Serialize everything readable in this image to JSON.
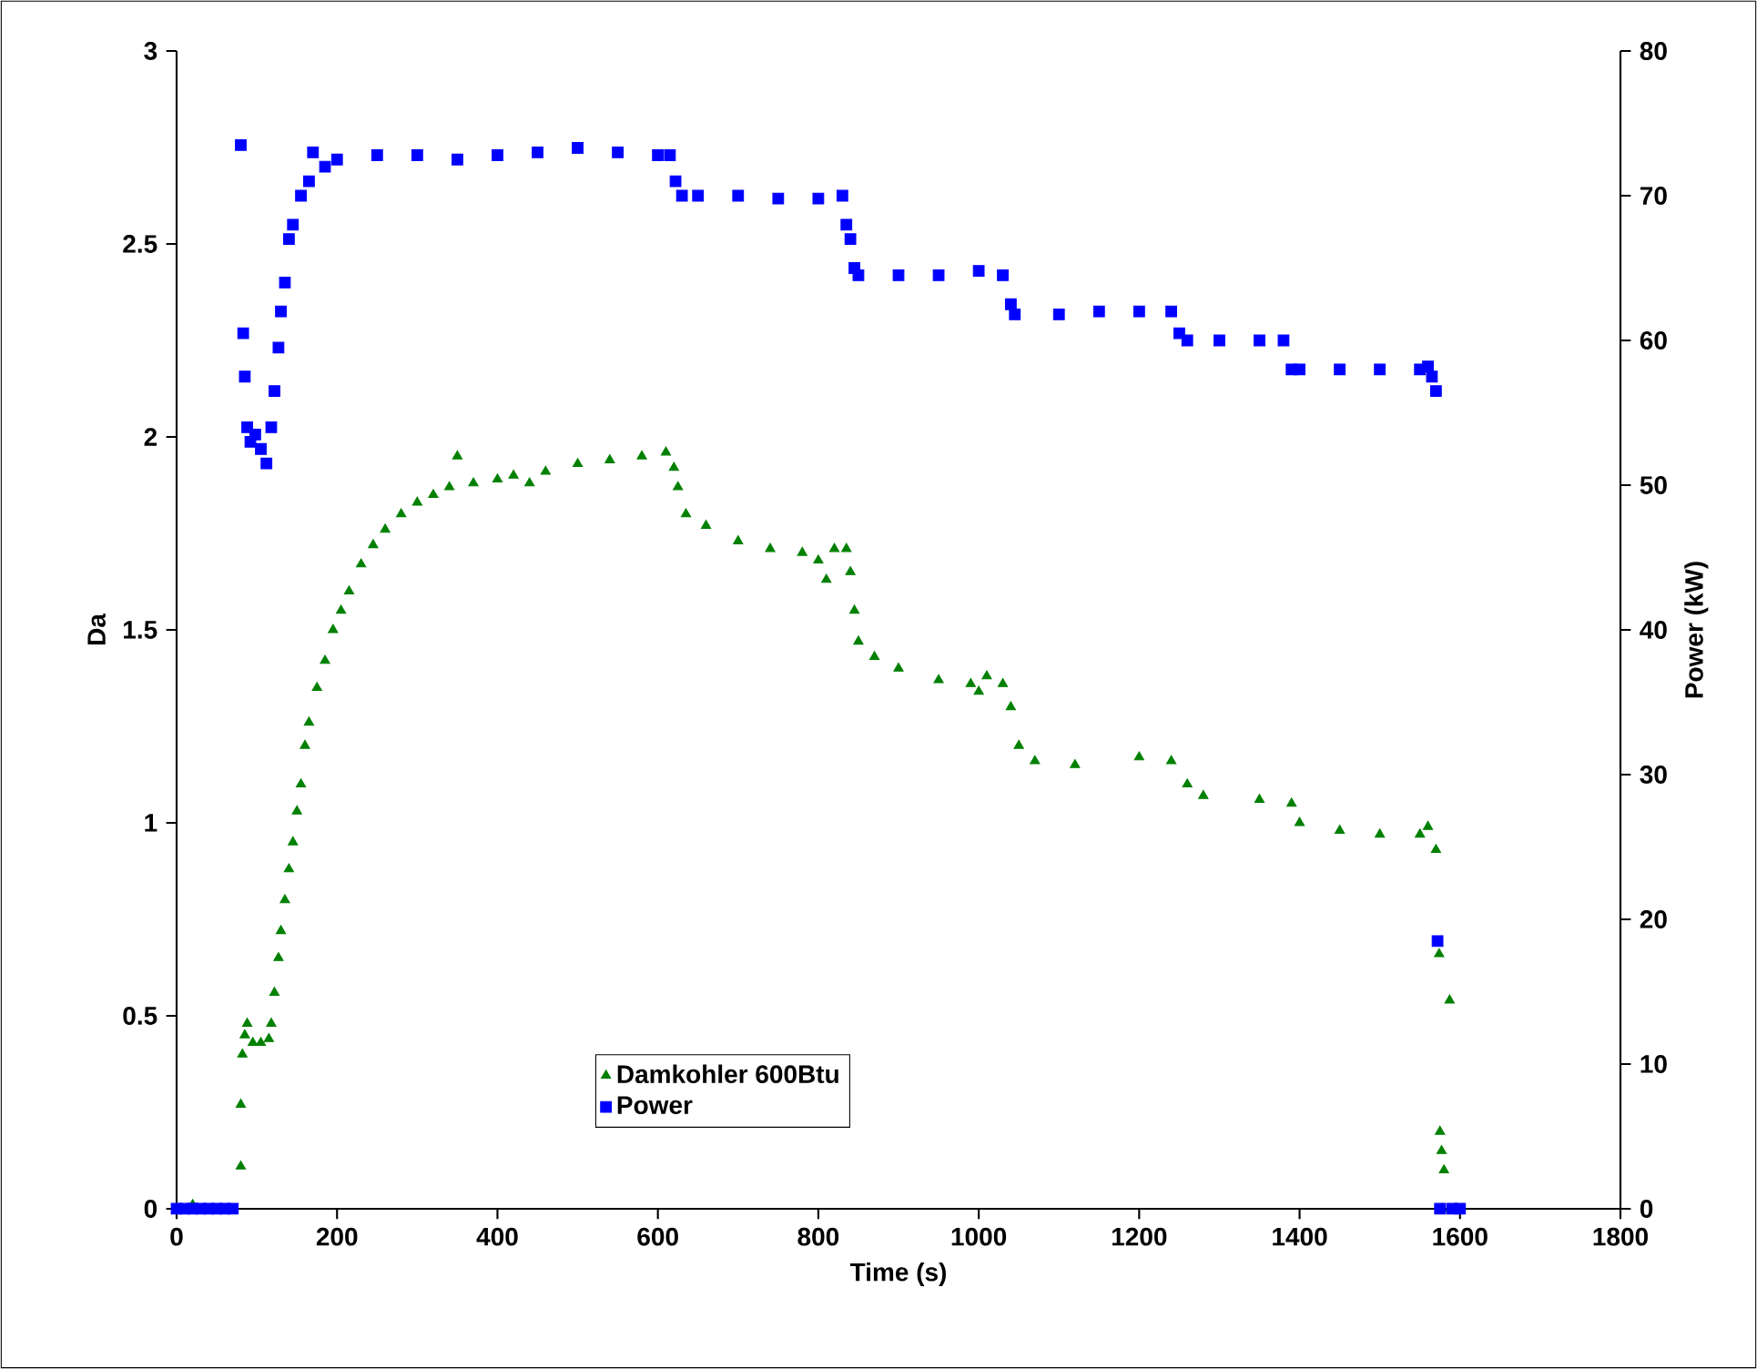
{
  "chart_data": {
    "type": "scatter",
    "xlabel": "Time (s)",
    "ylabel": "Da",
    "y2label": "Power (kW)",
    "xlim": [
      0,
      1800
    ],
    "xticks": [
      0,
      200,
      400,
      600,
      800,
      1000,
      1200,
      1400,
      1600,
      1800
    ],
    "ylim": [
      0,
      3
    ],
    "yticks": [
      0,
      0.5,
      1,
      1.5,
      2,
      2.5,
      3
    ],
    "y2lim": [
      0,
      80
    ],
    "y2ticks": [
      0,
      10,
      20,
      30,
      40,
      50,
      60,
      70,
      80
    ],
    "legend": "bottom",
    "grid": false,
    "series": [
      {
        "name": "Damkohler 600Btu",
        "color": "#008000",
        "marker": "triangle",
        "x": [
          20,
          80,
          80,
          82,
          85,
          88,
          95,
          105,
          115,
          118,
          122,
          127,
          130,
          135,
          140,
          145,
          150,
          155,
          160,
          165,
          175,
          185,
          195,
          205,
          215,
          230,
          245,
          260,
          280,
          300,
          320,
          340,
          350,
          370,
          400,
          420,
          440,
          460,
          500,
          540,
          580,
          610,
          620,
          625,
          635,
          660,
          700,
          740,
          780,
          800,
          810,
          820,
          835,
          840,
          845,
          850,
          870,
          900,
          950,
          990,
          1000,
          1010,
          1030,
          1040,
          1050,
          1070,
          1120,
          1200,
          1240,
          1260,
          1280,
          1350,
          1390,
          1400,
          1450,
          1500,
          1550,
          1560,
          1570,
          1574,
          1575,
          1577,
          1578,
          1580,
          1587
        ],
        "values": [
          0.01,
          0.11,
          0.27,
          0.4,
          0.45,
          0.48,
          0.43,
          0.43,
          0.44,
          0.48,
          0.56,
          0.65,
          0.72,
          0.8,
          0.88,
          0.95,
          1.03,
          1.1,
          1.2,
          1.26,
          1.35,
          1.42,
          1.5,
          1.55,
          1.6,
          1.67,
          1.72,
          1.76,
          1.8,
          1.83,
          1.85,
          1.87,
          1.95,
          1.88,
          1.89,
          1.9,
          1.88,
          1.91,
          1.93,
          1.94,
          1.95,
          1.96,
          1.92,
          1.87,
          1.8,
          1.77,
          1.73,
          1.71,
          1.7,
          1.68,
          1.63,
          1.71,
          1.71,
          1.65,
          1.55,
          1.47,
          1.43,
          1.4,
          1.37,
          1.36,
          1.34,
          1.38,
          1.36,
          1.3,
          1.2,
          1.16,
          1.15,
          1.17,
          1.16,
          1.1,
          1.07,
          1.06,
          1.05,
          1.0,
          0.98,
          0.97,
          0.97,
          0.99,
          0.93,
          0.66,
          0.2,
          0.15,
          0,
          0.1,
          0.54
        ]
      },
      {
        "name": "Power",
        "color": "#0000ff",
        "marker": "square",
        "axis": "y2",
        "x": [
          0,
          10,
          20,
          30,
          40,
          50,
          60,
          70,
          80,
          83,
          85,
          88,
          92,
          98,
          105,
          112,
          118,
          122,
          127,
          130,
          135,
          140,
          145,
          155,
          165,
          170,
          185,
          200,
          250,
          300,
          350,
          400,
          450,
          500,
          550,
          600,
          615,
          622,
          630,
          650,
          700,
          750,
          800,
          830,
          835,
          840,
          845,
          850,
          900,
          950,
          1000,
          1030,
          1040,
          1045,
          1100,
          1150,
          1200,
          1240,
          1250,
          1260,
          1300,
          1350,
          1380,
          1390,
          1400,
          1450,
          1500,
          1550,
          1560,
          1565,
          1570,
          1572,
          1575,
          1590,
          1600
        ],
        "values": [
          0,
          0,
          0,
          0,
          0,
          0,
          0,
          0,
          73.5,
          60.5,
          57.5,
          54,
          53,
          53.5,
          52.5,
          51.5,
          54,
          56.5,
          59.5,
          62,
          64,
          67,
          68,
          70,
          71,
          73,
          72,
          72.5,
          72.8,
          72.8,
          72.5,
          72.8,
          73,
          73.3,
          73,
          72.8,
          72.8,
          71,
          70,
          70,
          70,
          69.8,
          69.8,
          70,
          68,
          67,
          65,
          64.5,
          64.5,
          64.5,
          64.8,
          64.5,
          62.5,
          61.8,
          61.8,
          62,
          62,
          62,
          60.5,
          60,
          60,
          60,
          60,
          58,
          58,
          58,
          58,
          58,
          58.2,
          57.5,
          56.5,
          18.5,
          0,
          0,
          0
        ]
      }
    ]
  }
}
